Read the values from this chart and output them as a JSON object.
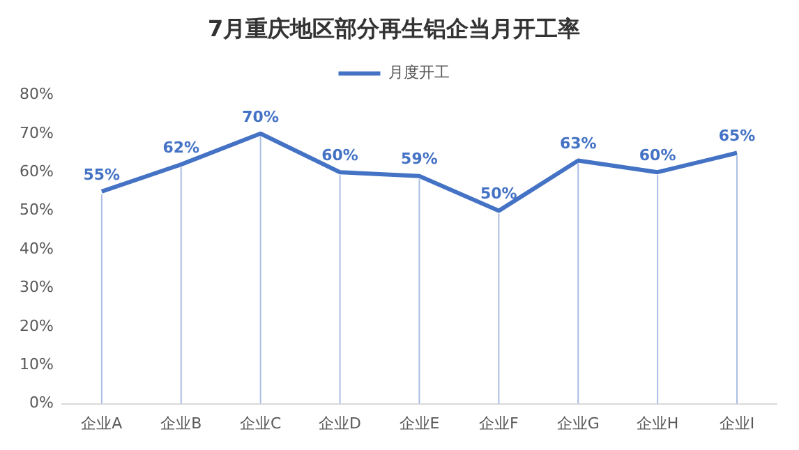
{
  "chart_data": {
    "type": "line",
    "title": "7月重庆地区部分再生铝企当月开工率",
    "categories": [
      "企业A",
      "企业B",
      "企业C",
      "企业D",
      "企业E",
      "企业F",
      "企业G",
      "企业H",
      "企业I"
    ],
    "series": [
      {
        "name": "月度开工",
        "color": "#4472c4",
        "values": [
          55,
          62,
          70,
          60,
          59,
          50,
          63,
          60,
          65
        ],
        "value_labels": [
          "55%",
          "62%",
          "70%",
          "60%",
          "59%",
          "50%",
          "63%",
          "60%",
          "65%"
        ]
      }
    ],
    "ylim": [
      0,
      80
    ],
    "yticks": [
      {
        "value": 0,
        "label": "0%"
      },
      {
        "value": 10,
        "label": "10%"
      },
      {
        "value": 20,
        "label": "20%"
      },
      {
        "value": 30,
        "label": "30%"
      },
      {
        "value": 40,
        "label": "40%"
      },
      {
        "value": 50,
        "label": "50%"
      },
      {
        "value": 60,
        "label": "60%"
      },
      {
        "value": 70,
        "label": "70%"
      },
      {
        "value": 80,
        "label": "80%"
      }
    ],
    "grid": "x",
    "legend": "top",
    "marker": "none",
    "line_style": "solid"
  }
}
